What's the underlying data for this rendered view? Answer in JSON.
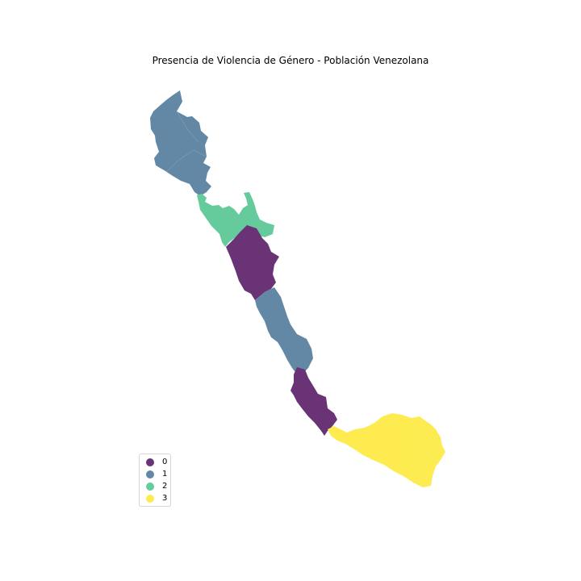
{
  "title": "Presencia de Violencia de Género - Población Venezolana",
  "legend": {
    "items": [
      {
        "label": "0",
        "color": "#440154"
      },
      {
        "label": "1",
        "color": "#3b6b8f"
      },
      {
        "label": "2",
        "color": "#3fbf84"
      },
      {
        "label": "3",
        "color": "#fde725"
      }
    ]
  },
  "regions": [
    {
      "category": 1,
      "color": "#3b6b8f"
    },
    {
      "category": 2,
      "color": "#3fbf84"
    },
    {
      "category": 0,
      "color": "#440154"
    },
    {
      "category": 1,
      "color": "#3b6b8f"
    },
    {
      "category": 0,
      "color": "#440154"
    },
    {
      "category": 3,
      "color": "#fde725"
    }
  ]
}
